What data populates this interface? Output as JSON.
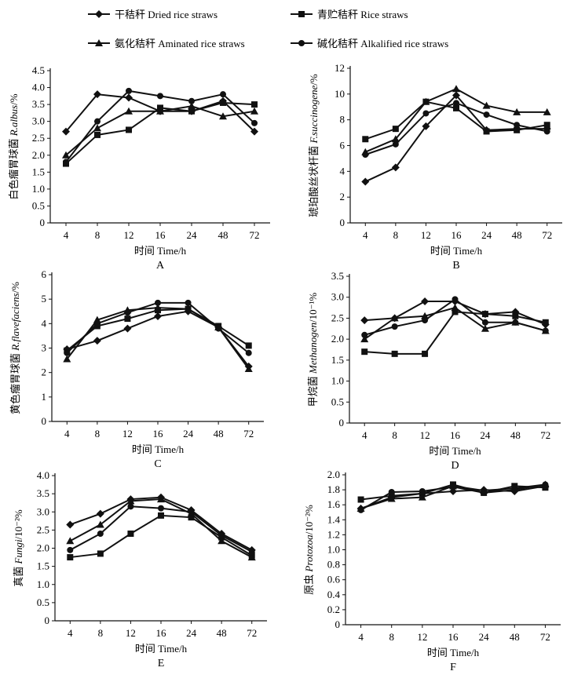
{
  "legend": [
    {
      "label": "干秸秆  Dried rice straws",
      "marker": "diamond"
    },
    {
      "label": "青贮秸秆 Rice straws",
      "marker": "square"
    },
    {
      "label": "氨化秸秆  Aminated rice straws",
      "marker": "triangle"
    },
    {
      "label": "碱化秸秆 Alkalified rice straws",
      "marker": "circle"
    }
  ],
  "chart_data": [
    {
      "type": "line",
      "panel": "A",
      "xlabel": "时间 Time/h",
      "ylabel_cn": "白色瘤胃球菌",
      "ylabel_sp": "R.albus",
      "ylabel_unit": "/%",
      "categories": [
        "4",
        "8",
        "12",
        "16",
        "24",
        "48",
        "72"
      ],
      "ylim": [
        0,
        4.5
      ],
      "yticks": [
        "0",
        "0.5",
        "1.0",
        "1.5",
        "2.0",
        "2.5",
        "3.0",
        "3.5",
        "4.0",
        "4.5"
      ],
      "series": [
        {
          "name": "干秸秆  Dried rice straws",
          "marker": "diamond",
          "values": [
            2.7,
            3.8,
            3.7,
            3.3,
            3.3,
            3.6,
            2.7
          ]
        },
        {
          "name": "青贮秸秆 Rice straws",
          "marker": "square",
          "values": [
            1.75,
            2.6,
            2.75,
            3.4,
            3.3,
            3.55,
            3.5
          ]
        },
        {
          "name": "氨化秸秆  Aminated rice straws",
          "marker": "triangle",
          "values": [
            2.0,
            2.8,
            3.3,
            3.3,
            3.45,
            3.15,
            3.3
          ]
        },
        {
          "name": "碱化秸秆 Alkalified rice straws",
          "marker": "circle",
          "values": [
            1.8,
            3.0,
            3.9,
            3.75,
            3.6,
            3.8,
            2.95
          ]
        }
      ]
    },
    {
      "type": "line",
      "panel": "B",
      "xlabel": "时间 Time/h",
      "ylabel_cn": "琥珀酸丝状杆菌",
      "ylabel_sp": "F.succinogene",
      "ylabel_unit": "/%",
      "categories": [
        "4",
        "8",
        "12",
        "16",
        "24",
        "48",
        "72"
      ],
      "ylim": [
        0,
        12
      ],
      "yticks": [
        "0",
        "2",
        "4",
        "6",
        "8",
        "10",
        "12"
      ],
      "series": [
        {
          "name": "干秸秆  Dried rice straws",
          "marker": "diamond",
          "values": [
            3.2,
            4.3,
            7.5,
            9.9,
            7.2,
            7.3,
            7.3
          ]
        },
        {
          "name": "青贮秸秆 Rice straws",
          "marker": "square",
          "values": [
            6.5,
            7.3,
            9.4,
            8.9,
            7.1,
            7.2,
            7.6
          ]
        },
        {
          "name": "氨化秸秆  Aminated rice straws",
          "marker": "triangle",
          "values": [
            5.5,
            6.5,
            9.4,
            10.4,
            9.1,
            8.6,
            8.6
          ]
        },
        {
          "name": "碱化秸秆 Alkalified rice straws",
          "marker": "circle",
          "values": [
            5.3,
            6.1,
            8.5,
            9.3,
            8.4,
            7.6,
            7.1
          ]
        }
      ]
    },
    {
      "type": "line",
      "panel": "C",
      "xlabel": "时间 Time/h",
      "ylabel_cn": "黄色瘤胃球菌",
      "ylabel_sp": "R.flavefaciens",
      "ylabel_unit": "/%",
      "categories": [
        "4",
        "8",
        "12",
        "16",
        "24",
        "48",
        "72"
      ],
      "ylim": [
        0,
        6
      ],
      "yticks": [
        "0",
        "1",
        "2",
        "3",
        "4",
        "5",
        "6"
      ],
      "series": [
        {
          "name": "干秸秆  Dried rice straws",
          "marker": "diamond",
          "values": [
            2.95,
            3.3,
            3.8,
            4.3,
            4.5,
            3.85,
            2.25
          ]
        },
        {
          "name": "青贮秸秆 Rice straws",
          "marker": "square",
          "values": [
            2.9,
            3.9,
            4.2,
            4.55,
            4.6,
            3.9,
            3.1
          ]
        },
        {
          "name": "氨化秸秆  Aminated rice straws",
          "marker": "triangle",
          "values": [
            2.55,
            4.15,
            4.55,
            4.65,
            4.6,
            3.85,
            2.15
          ]
        },
        {
          "name": "碱化秸秆 Alkalified rice straws",
          "marker": "circle",
          "values": [
            2.8,
            4.0,
            4.45,
            4.85,
            4.85,
            3.8,
            2.8
          ]
        }
      ]
    },
    {
      "type": "line",
      "panel": "D",
      "xlabel": "时间 Time/h",
      "ylabel_cn": "甲烷菌",
      "ylabel_sp": "Methanogen",
      "ylabel_unit": "/10⁻¹%",
      "categories": [
        "4",
        "8",
        "12",
        "16",
        "24",
        "48",
        "72"
      ],
      "ylim": [
        0,
        3.5
      ],
      "yticks": [
        "0",
        "0.5",
        "1.0",
        "1.5",
        "2.0",
        "2.5",
        "3.0",
        "3.5"
      ],
      "series": [
        {
          "name": "干秸秆  Dried rice straws",
          "marker": "diamond",
          "values": [
            2.45,
            2.5,
            2.9,
            2.9,
            2.6,
            2.65,
            2.35
          ]
        },
        {
          "name": "青贮秸秆 Rice straws",
          "marker": "square",
          "values": [
            1.7,
            1.65,
            1.65,
            2.65,
            2.6,
            2.55,
            2.4
          ]
        },
        {
          "name": "氨化秸秆  Aminated rice straws",
          "marker": "triangle",
          "values": [
            2.0,
            2.5,
            2.55,
            2.75,
            2.25,
            2.4,
            2.2
          ]
        },
        {
          "name": "碱化秸秆 Alkalified rice straws",
          "marker": "circle",
          "values": [
            2.1,
            2.3,
            2.45,
            2.95,
            2.4,
            2.4,
            2.2
          ]
        }
      ]
    },
    {
      "type": "line",
      "panel": "E",
      "xlabel": "时间 Time/h",
      "ylabel_cn": "真菌",
      "ylabel_sp": "Fungi",
      "ylabel_unit": "/10⁻²%",
      "categories": [
        "4",
        "8",
        "12",
        "16",
        "24",
        "48",
        "72"
      ],
      "ylim": [
        0,
        4.0
      ],
      "yticks": [
        "0",
        "0.5",
        "1.0",
        "1.5",
        "2.0",
        "2.5",
        "3.0",
        "3.5",
        "4.0"
      ],
      "series": [
        {
          "name": "干秸秆  Dried rice straws",
          "marker": "diamond",
          "values": [
            2.65,
            2.95,
            3.35,
            3.4,
            3.05,
            2.4,
            1.95
          ]
        },
        {
          "name": "青贮秸秆 Rice straws",
          "marker": "square",
          "values": [
            1.75,
            1.85,
            2.4,
            2.9,
            2.85,
            2.3,
            1.8
          ]
        },
        {
          "name": "氨化秸秆  Aminated rice straws",
          "marker": "triangle",
          "values": [
            2.2,
            2.65,
            3.3,
            3.35,
            2.95,
            2.2,
            1.75
          ]
        },
        {
          "name": "碱化秸秆 Alkalified rice straws",
          "marker": "circle",
          "values": [
            1.95,
            2.4,
            3.15,
            3.1,
            3.0,
            2.35,
            1.9
          ]
        }
      ]
    },
    {
      "type": "line",
      "panel": "F",
      "xlabel": "时间 Time/h",
      "ylabel_cn": "原虫",
      "ylabel_sp": "Protozoa",
      "ylabel_unit": "/10⁻²%",
      "categories": [
        "4",
        "8",
        "12",
        "16",
        "24",
        "48",
        "72"
      ],
      "ylim": [
        0,
        2.0
      ],
      "yticks": [
        "0",
        "0.2",
        "0.4",
        "0.6",
        "0.8",
        "1.0",
        "1.2",
        "1.4",
        "1.6",
        "1.8",
        "2.0"
      ],
      "series": [
        {
          "name": "干秸秆  Dried rice straws",
          "marker": "diamond",
          "values": [
            1.55,
            1.7,
            1.75,
            1.78,
            1.8,
            1.78,
            1.85
          ]
        },
        {
          "name": "青贮秸秆 Rice straws",
          "marker": "square",
          "values": [
            1.67,
            1.72,
            1.75,
            1.87,
            1.76,
            1.85,
            1.83
          ]
        },
        {
          "name": "氨化秸秆  Aminated rice straws",
          "marker": "triangle",
          "values": [
            1.55,
            1.68,
            1.7,
            1.85,
            1.79,
            1.82,
            1.87
          ]
        },
        {
          "name": "碱化秸秆 Alkalified rice straws",
          "marker": "circle",
          "values": [
            1.53,
            1.77,
            1.78,
            1.84,
            1.76,
            1.8,
            1.87
          ]
        }
      ]
    }
  ]
}
